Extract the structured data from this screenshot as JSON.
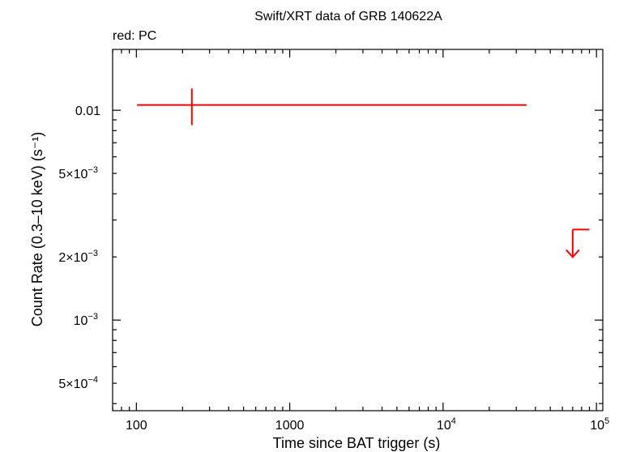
{
  "chart_data": {
    "type": "scatter",
    "title": "Swift/XRT data of GRB 140622A",
    "subtitle": "red: PC",
    "xlabel": "Time since BAT trigger (s)",
    "ylabel": "Count Rate (0.3–10 keV) (s⁻¹)",
    "xscale": "log",
    "yscale": "log",
    "xlim": [
      70,
      110000
    ],
    "ylim": [
      0.00037,
      0.0195
    ],
    "x_ticks": [
      {
        "value": 100,
        "label": "100"
      },
      {
        "value": 1000,
        "label": "1000"
      },
      {
        "value": 10000,
        "base": "10",
        "exp": "4"
      },
      {
        "value": 100000,
        "base": "10",
        "exp": "5"
      }
    ],
    "y_ticks": [
      {
        "value": 0.01,
        "mant": "0.01",
        "exp": ""
      },
      {
        "value": 0.005,
        "mant": "5×10",
        "exp": "−3"
      },
      {
        "value": 0.002,
        "mant": "2×10",
        "exp": "−3"
      },
      {
        "value": 0.001,
        "mant": "10",
        "exp": "−3"
      },
      {
        "value": 0.0005,
        "mant": "5×10",
        "exp": "−4"
      }
    ],
    "grid": false,
    "series": [
      {
        "color": "#ff0000",
        "points": [
          {
            "x": 230,
            "x_lo": 101,
            "x_hi": 35000,
            "y": 0.0106,
            "y_lo": 0.0085,
            "y_hi": 0.0127
          }
        ],
        "upper_limits": [
          {
            "x": 70000,
            "x_lo": 70000,
            "x_hi": 90000,
            "y": 0.0027
          }
        ]
      }
    ]
  }
}
